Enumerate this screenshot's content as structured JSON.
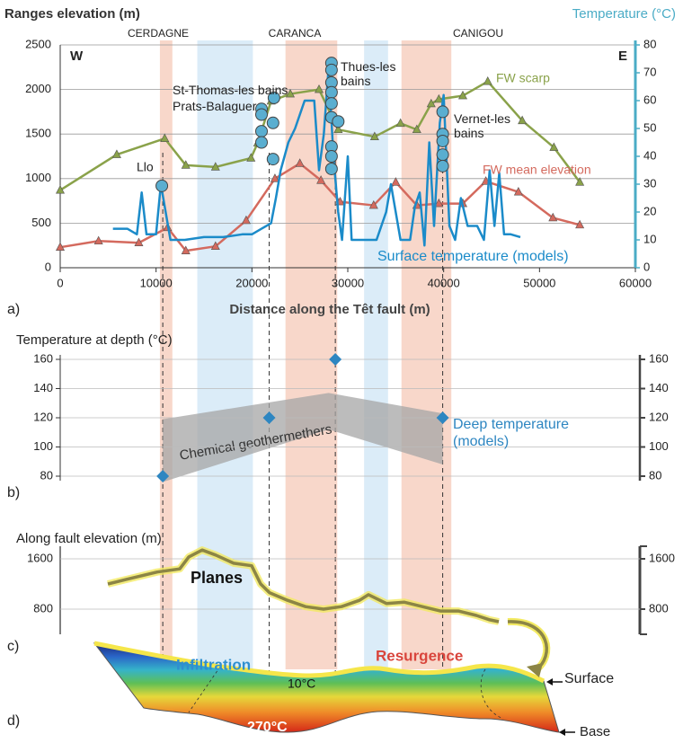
{
  "panel_labels": [
    "a)",
    "b)",
    "c)",
    "d)"
  ],
  "chart_data": [
    {
      "type": "line",
      "ylabel": "Ranges elevation (m)",
      "y2label": "Temperature (°C)",
      "xlabel": "Distance along the Têt fault (m)",
      "xlim": [
        0,
        60000
      ],
      "xticks": [
        0,
        10000,
        20000,
        30000,
        40000,
        50000,
        60000
      ],
      "ylim": [
        0,
        2500
      ],
      "yticks": [
        0,
        500,
        1000,
        1500,
        2000,
        2500
      ],
      "y2lim": [
        0,
        80
      ],
      "y2ticks": [
        0,
        10,
        20,
        30,
        40,
        50,
        60,
        70,
        80
      ],
      "grid": true,
      "annotations": [
        "W",
        "E",
        "CERDAGNE",
        "CARANCA",
        "CANIGOU",
        "Llo",
        "St-Thomas-les bains",
        "Prats-Balaguer",
        "Thues-les bains",
        "Vernet-les bains"
      ],
      "bands": [
        {
          "x": [
            10400,
            11700
          ],
          "color": "#f6c9b8"
        },
        {
          "x": [
            14300,
            20100
          ],
          "color": "#cfe5f6"
        },
        {
          "x": [
            23500,
            28900
          ],
          "color": "#f6c9b8"
        },
        {
          "x": [
            31700,
            34200
          ],
          "color": "#cfe5f6"
        },
        {
          "x": [
            35600,
            40800
          ],
          "color": "#f6c9b8"
        }
      ],
      "series": [
        {
          "name": "FW scarp",
          "color": "#8aa24a",
          "marker": "triangle",
          "x": [
            0,
            5900,
            10900,
            13100,
            16200,
            19900,
            20600,
            22000,
            24000,
            27000,
            29000,
            32800,
            35500,
            37200,
            38700,
            39500,
            42000,
            44600,
            48200,
            51500,
            54200
          ],
          "values": [
            870,
            1270,
            1450,
            1150,
            1130,
            1230,
            1400,
            1870,
            1950,
            2000,
            1550,
            1470,
            1620,
            1550,
            1840,
            1890,
            1930,
            2090,
            1650,
            1350,
            960
          ]
        },
        {
          "name": "FW mean elevation",
          "color": "#d46a5e",
          "marker": "triangle",
          "x": [
            0,
            4000,
            8200,
            11200,
            13100,
            16200,
            19400,
            22400,
            25000,
            27200,
            29200,
            32700,
            35000,
            37200,
            39500,
            42000,
            44400,
            47800,
            51400,
            54200
          ],
          "values": [
            230,
            300,
            280,
            450,
            190,
            240,
            530,
            1000,
            1170,
            980,
            740,
            700,
            960,
            700,
            720,
            720,
            970,
            850,
            560,
            480
          ]
        },
        {
          "name": "Surface temperature (models)",
          "color": "#1b8bc9",
          "axis": "y2",
          "x": [
            5500,
            7000,
            8000,
            8500,
            9000,
            10000,
            10500,
            11000,
            11500,
            13000,
            15000,
            17000,
            19000,
            20000,
            21000,
            22000,
            22500,
            23000,
            23800,
            24500,
            25500,
            26500,
            27000,
            27500,
            28000,
            28500,
            29000,
            29400,
            30000,
            30400,
            31500,
            33000,
            34000,
            34500,
            35500,
            36500,
            37000,
            37500,
            38000,
            38500,
            39000,
            39600,
            40000,
            40600,
            41200,
            41800,
            42500,
            43500,
            44200,
            44800,
            45300,
            45800,
            46300,
            47000,
            48000
          ],
          "values": [
            14,
            14,
            12,
            27,
            12,
            12,
            30,
            20,
            10,
            10,
            11,
            11,
            12,
            12,
            14,
            16,
            25,
            35,
            45,
            50,
            60,
            60,
            35,
            48,
            72,
            40,
            20,
            10,
            40,
            10,
            10,
            10,
            20,
            30,
            10,
            10,
            22,
            27,
            8,
            45,
            15,
            52,
            62,
            15,
            10,
            25,
            15,
            15,
            10,
            35,
            15,
            34,
            12,
            12,
            11
          ]
        },
        {
          "color": "#5aaed0",
          "marker": "circle",
          "line": false,
          "axis": "y2",
          "x": [
            10600,
            21000,
            21000,
            21000,
            21000,
            22300,
            22200,
            22200,
            28300,
            28300,
            28300,
            28300,
            28300,
            28300,
            28300,
            28300,
            28300,
            29000,
            39900,
            39900,
            39900,
            39900,
            39900
          ],
          "values": [
            29.4,
            57,
            55,
            49,
            45,
            61,
            52,
            39,
            73.5,
            71,
            66.5,
            63,
            59,
            54,
            43.5,
            40,
            35.5,
            52.5,
            56,
            48,
            45.5,
            40.6,
            36.5
          ]
        }
      ]
    },
    {
      "type": "scatter",
      "ylabel": "Temperature at depth (°C)",
      "ylim": [
        80,
        160
      ],
      "yticks": [
        80,
        100,
        120,
        140,
        160
      ],
      "grid": true,
      "band": {
        "label": "Chemical geothermethers",
        "color": "#a6a6a6",
        "x": [
          10700,
          28000,
          39900
        ],
        "lower": [
          76,
          112,
          88
        ],
        "upper": [
          119,
          137,
          123
        ]
      },
      "series": [
        {
          "name": "Deep temperature (models)",
          "color": "#2e86c1",
          "marker": "diamond",
          "x": [
            10700,
            21800,
            28700,
            39900
          ],
          "values": [
            80,
            120,
            160,
            120
          ]
        }
      ]
    },
    {
      "type": "line",
      "ylabel": "Along fault elevation (m)",
      "ylim": [
        400,
        1800
      ],
      "yticks": [
        800,
        1600
      ],
      "annotations": [
        "Planes"
      ],
      "series": [
        {
          "color": "#8c8545",
          "glow": "#f3ea62",
          "x": [
            4970,
            6840,
            10120,
            12470,
            13410,
            14810,
            16220,
            18090,
            19970,
            20910,
            21840,
            23720,
            25590,
            27470,
            29340,
            31220,
            32160,
            34030,
            35910,
            37780,
            39660,
            41530,
            43410,
            44810,
            45750
          ],
          "values": [
            1200,
            1270,
            1390,
            1440,
            1630,
            1740,
            1660,
            1530,
            1490,
            1200,
            1060,
            940,
            840,
            800,
            840,
            940,
            1030,
            890,
            910,
            840,
            770,
            770,
            700,
            630,
            600
          ]
        }
      ]
    }
  ],
  "panel_d": {
    "infiltration": "Infiltration",
    "resurgence": "Resurgence",
    "top_temperature": "10°C",
    "bottom_temperature": "270°C",
    "surface": "Surface",
    "base": "Base"
  }
}
